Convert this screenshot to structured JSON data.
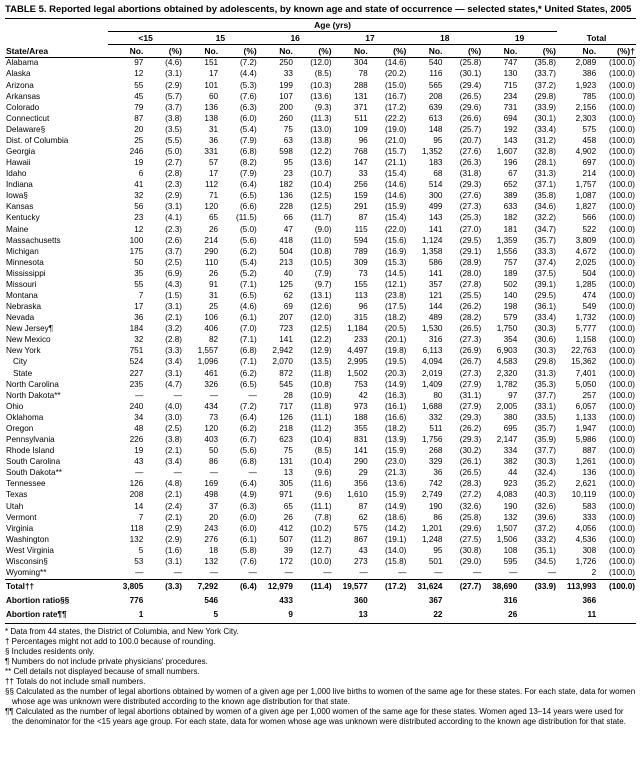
{
  "title": "TABLE 5. Reported legal abortions obtained by adolescents, by known age and state of occurrence — selected states,* United States, 2005",
  "age_header": "Age (yrs)",
  "groups": [
    "<15",
    "15",
    "16",
    "17",
    "18",
    "19",
    "Total"
  ],
  "col_labels": {
    "state": "State/Area",
    "no": "No.",
    "pct": "(%)",
    "pct_total": "(%)†"
  },
  "rows": [
    {
      "s": "Alabama",
      "v": [
        "97",
        "(4.6)",
        "151",
        "(7.2)",
        "250",
        "(12.0)",
        "304",
        "(14.6)",
        "540",
        "(25.8)",
        "747",
        "(35.8)",
        "2,089",
        "(100.0)"
      ]
    },
    {
      "s": "Alaska",
      "v": [
        "12",
        "(3.1)",
        "17",
        "(4.4)",
        "33",
        "(8.5)",
        "78",
        "(20.2)",
        "116",
        "(30.1)",
        "130",
        "(33.7)",
        "386",
        "(100.0)"
      ]
    },
    {
      "s": "Arizona",
      "v": [
        "55",
        "(2.9)",
        "101",
        "(5.3)",
        "199",
        "(10.3)",
        "288",
        "(15.0)",
        "565",
        "(29.4)",
        "715",
        "(37.2)",
        "1,923",
        "(100.0)"
      ]
    },
    {
      "s": "Arkansas",
      "v": [
        "45",
        "(5.7)",
        "60",
        "(7.6)",
        "107",
        "(13.6)",
        "131",
        "(16.7)",
        "208",
        "(26.5)",
        "234",
        "(29.8)",
        "785",
        "(100.0)"
      ]
    },
    {
      "s": "Colorado",
      "v": [
        "79",
        "(3.7)",
        "136",
        "(6.3)",
        "200",
        "(9.3)",
        "371",
        "(17.2)",
        "639",
        "(29.6)",
        "731",
        "(33.9)",
        "2,156",
        "(100.0)"
      ]
    },
    {
      "s": "Connecticut",
      "v": [
        "87",
        "(3.8)",
        "138",
        "(6.0)",
        "260",
        "(11.3)",
        "511",
        "(22.2)",
        "613",
        "(26.6)",
        "694",
        "(30.1)",
        "2,303",
        "(100.0)"
      ]
    },
    {
      "s": "Delaware§",
      "v": [
        "20",
        "(3.5)",
        "31",
        "(5.4)",
        "75",
        "(13.0)",
        "109",
        "(19.0)",
        "148",
        "(25.7)",
        "192",
        "(33.4)",
        "575",
        "(100.0)"
      ]
    },
    {
      "s": "Dist. of Columbia",
      "v": [
        "25",
        "(5.5)",
        "36",
        "(7.9)",
        "63",
        "(13.8)",
        "96",
        "(21.0)",
        "95",
        "(20.7)",
        "143",
        "(31.2)",
        "458",
        "(100.0)"
      ]
    },
    {
      "s": "Georgia",
      "v": [
        "246",
        "(5.0)",
        "331",
        "(6.8)",
        "598",
        "(12.2)",
        "768",
        "(15.7)",
        "1,352",
        "(27.6)",
        "1,607",
        "(32.8)",
        "4,902",
        "(100.0)"
      ]
    },
    {
      "s": "Hawaii",
      "v": [
        "19",
        "(2.7)",
        "57",
        "(8.2)",
        "95",
        "(13.6)",
        "147",
        "(21.1)",
        "183",
        "(26.3)",
        "196",
        "(28.1)",
        "697",
        "(100.0)"
      ]
    },
    {
      "s": "Idaho",
      "v": [
        "6",
        "(2.8)",
        "17",
        "(7.9)",
        "23",
        "(10.7)",
        "33",
        "(15.4)",
        "68",
        "(31.8)",
        "67",
        "(31.3)",
        "214",
        "(100.0)"
      ]
    },
    {
      "s": "Indiana",
      "v": [
        "41",
        "(2.3)",
        "112",
        "(6.4)",
        "182",
        "(10.4)",
        "256",
        "(14.6)",
        "514",
        "(29.3)",
        "652",
        "(37.1)",
        "1,757",
        "(100.0)"
      ]
    },
    {
      "s": "Iowa§",
      "v": [
        "32",
        "(2.9)",
        "71",
        "(6.5)",
        "136",
        "(12.5)",
        "159",
        "(14.6)",
        "300",
        "(27.6)",
        "389",
        "(35.8)",
        "1,087",
        "(100.0)"
      ]
    },
    {
      "s": "Kansas",
      "v": [
        "56",
        "(3.1)",
        "120",
        "(6.6)",
        "228",
        "(12.5)",
        "291",
        "(15.9)",
        "499",
        "(27.3)",
        "633",
        "(34.6)",
        "1,827",
        "(100.0)"
      ]
    },
    {
      "s": "Kentucky",
      "v": [
        "23",
        "(4.1)",
        "65",
        "(11.5)",
        "66",
        "(11.7)",
        "87",
        "(15.4)",
        "143",
        "(25.3)",
        "182",
        "(32.2)",
        "566",
        "(100.0)"
      ]
    },
    {
      "s": "Maine",
      "v": [
        "12",
        "(2.3)",
        "26",
        "(5.0)",
        "47",
        "(9.0)",
        "115",
        "(22.0)",
        "141",
        "(27.0)",
        "181",
        "(34.7)",
        "522",
        "(100.0)"
      ]
    },
    {
      "s": "Massachusetts",
      "v": [
        "100",
        "(2.6)",
        "214",
        "(5.6)",
        "418",
        "(11.0)",
        "594",
        "(15.6)",
        "1,124",
        "(29.5)",
        "1,359",
        "(35.7)",
        "3,809",
        "(100.0)"
      ]
    },
    {
      "s": "Michigan",
      "v": [
        "175",
        "(3.7)",
        "290",
        "(6.2)",
        "504",
        "(10.8)",
        "789",
        "(16.9)",
        "1,358",
        "(29.1)",
        "1,556",
        "(33.3)",
        "4,672",
        "(100.0)"
      ]
    },
    {
      "s": "Minnesota",
      "v": [
        "50",
        "(2.5)",
        "110",
        "(5.4)",
        "213",
        "(10.5)",
        "309",
        "(15.3)",
        "586",
        "(28.9)",
        "757",
        "(37.4)",
        "2,025",
        "(100.0)"
      ]
    },
    {
      "s": "Mississippi",
      "v": [
        "35",
        "(6.9)",
        "26",
        "(5.2)",
        "40",
        "(7.9)",
        "73",
        "(14.5)",
        "141",
        "(28.0)",
        "189",
        "(37.5)",
        "504",
        "(100.0)"
      ]
    },
    {
      "s": "Missouri",
      "v": [
        "55",
        "(4.3)",
        "91",
        "(7.1)",
        "125",
        "(9.7)",
        "155",
        "(12.1)",
        "357",
        "(27.8)",
        "502",
        "(39.1)",
        "1,285",
        "(100.0)"
      ]
    },
    {
      "s": "Montana",
      "v": [
        "7",
        "(1.5)",
        "31",
        "(6.5)",
        "62",
        "(13.1)",
        "113",
        "(23.8)",
        "121",
        "(25.5)",
        "140",
        "(29.5)",
        "474",
        "(100.0)"
      ]
    },
    {
      "s": "Nebraska",
      "v": [
        "17",
        "(3.1)",
        "25",
        "(4.6)",
        "69",
        "(12.6)",
        "96",
        "(17.5)",
        "144",
        "(26.2)",
        "198",
        "(36.1)",
        "549",
        "(100.0)"
      ]
    },
    {
      "s": "Nevada",
      "v": [
        "36",
        "(2.1)",
        "106",
        "(6.1)",
        "207",
        "(12.0)",
        "315",
        "(18.2)",
        "489",
        "(28.2)",
        "579",
        "(33.4)",
        "1,732",
        "(100.0)"
      ]
    },
    {
      "s": "New Jersey¶",
      "v": [
        "184",
        "(3.2)",
        "406",
        "(7.0)",
        "723",
        "(12.5)",
        "1,184",
        "(20.5)",
        "1,530",
        "(26.5)",
        "1,750",
        "(30.3)",
        "5,777",
        "(100.0)"
      ]
    },
    {
      "s": "New Mexico",
      "v": [
        "32",
        "(2.8)",
        "82",
        "(7.1)",
        "141",
        "(12.2)",
        "233",
        "(20.1)",
        "316",
        "(27.3)",
        "354",
        "(30.6)",
        "1,158",
        "(100.0)"
      ]
    },
    {
      "s": "New York",
      "v": [
        "751",
        "(3.3)",
        "1,557",
        "(6.8)",
        "2,942",
        "(12.9)",
        "4,497",
        "(19.8)",
        "6,113",
        "(26.9)",
        "6,903",
        "(30.3)",
        "22,763",
        "(100.0)"
      ]
    },
    {
      "s": "City",
      "indent": true,
      "v": [
        "524",
        "(3.4)",
        "1,096",
        "(7.1)",
        "2,070",
        "(13.5)",
        "2,995",
        "(19.5)",
        "4,094",
        "(26.7)",
        "4,583",
        "(29.8)",
        "15,362",
        "(100.0)"
      ]
    },
    {
      "s": "State",
      "indent": true,
      "v": [
        "227",
        "(3.1)",
        "461",
        "(6.2)",
        "872",
        "(11.8)",
        "1,502",
        "(20.3)",
        "2,019",
        "(27.3)",
        "2,320",
        "(31.3)",
        "7,401",
        "(100.0)"
      ]
    },
    {
      "s": "North Carolina",
      "v": [
        "235",
        "(4.7)",
        "326",
        "(6.5)",
        "545",
        "(10.8)",
        "753",
        "(14.9)",
        "1,409",
        "(27.9)",
        "1,782",
        "(35.3)",
        "5,050",
        "(100.0)"
      ]
    },
    {
      "s": "North Dakota**",
      "v": [
        "—",
        "—",
        "—",
        "—",
        "28",
        "(10.9)",
        "42",
        "(16.3)",
        "80",
        "(31.1)",
        "97",
        "(37.7)",
        "257",
        "(100.0)"
      ]
    },
    {
      "s": "Ohio",
      "v": [
        "240",
        "(4.0)",
        "434",
        "(7.2)",
        "717",
        "(11.8)",
        "973",
        "(16.1)",
        "1,688",
        "(27.9)",
        "2,005",
        "(33.1)",
        "6,057",
        "(100.0)"
      ]
    },
    {
      "s": "Oklahoma",
      "v": [
        "34",
        "(3.0)",
        "73",
        "(6.4)",
        "126",
        "(11.1)",
        "188",
        "(16.6)",
        "332",
        "(29.3)",
        "380",
        "(33.5)",
        "1,133",
        "(100.0)"
      ]
    },
    {
      "s": "Oregon",
      "v": [
        "48",
        "(2.5)",
        "120",
        "(6.2)",
        "218",
        "(11.2)",
        "355",
        "(18.2)",
        "511",
        "(26.2)",
        "695",
        "(35.7)",
        "1,947",
        "(100.0)"
      ]
    },
    {
      "s": "Pennsylvania",
      "v": [
        "226",
        "(3.8)",
        "403",
        "(6.7)",
        "623",
        "(10.4)",
        "831",
        "(13.9)",
        "1,756",
        "(29.3)",
        "2,147",
        "(35.9)",
        "5,986",
        "(100.0)"
      ]
    },
    {
      "s": "Rhode Island",
      "v": [
        "19",
        "(2.1)",
        "50",
        "(5.6)",
        "75",
        "(8.5)",
        "141",
        "(15.9)",
        "268",
        "(30.2)",
        "334",
        "(37.7)",
        "887",
        "(100.0)"
      ]
    },
    {
      "s": "South Carolina",
      "v": [
        "43",
        "(3.4)",
        "86",
        "(6.8)",
        "131",
        "(10.4)",
        "290",
        "(23.0)",
        "329",
        "(26.1)",
        "382",
        "(30.3)",
        "1,261",
        "(100.0)"
      ]
    },
    {
      "s": "South Dakota**",
      "v": [
        "—",
        "—",
        "—",
        "—",
        "13",
        "(9.6)",
        "29",
        "(21.3)",
        "36",
        "(26.5)",
        "44",
        "(32.4)",
        "136",
        "(100.0)"
      ]
    },
    {
      "s": "Tennessee",
      "v": [
        "126",
        "(4.8)",
        "169",
        "(6.4)",
        "305",
        "(11.6)",
        "356",
        "(13.6)",
        "742",
        "(28.3)",
        "923",
        "(35.2)",
        "2,621",
        "(100.0)"
      ]
    },
    {
      "s": "Texas",
      "v": [
        "208",
        "(2.1)",
        "498",
        "(4.9)",
        "971",
        "(9.6)",
        "1,610",
        "(15.9)",
        "2,749",
        "(27.2)",
        "4,083",
        "(40.3)",
        "10,119",
        "(100.0)"
      ]
    },
    {
      "s": "Utah",
      "v": [
        "14",
        "(2.4)",
        "37",
        "(6.3)",
        "65",
        "(11.1)",
        "87",
        "(14.9)",
        "190",
        "(32.6)",
        "190",
        "(32.6)",
        "583",
        "(100.0)"
      ]
    },
    {
      "s": "Vermont",
      "v": [
        "7",
        "(2.1)",
        "20",
        "(6.0)",
        "26",
        "(7.8)",
        "62",
        "(18.6)",
        "86",
        "(25.8)",
        "132",
        "(39.6)",
        "333",
        "(100.0)"
      ]
    },
    {
      "s": "Virginia",
      "v": [
        "118",
        "(2.9)",
        "243",
        "(6.0)",
        "412",
        "(10.2)",
        "575",
        "(14.2)",
        "1,201",
        "(29.6)",
        "1,507",
        "(37.2)",
        "4,056",
        "(100.0)"
      ]
    },
    {
      "s": "Washington",
      "v": [
        "132",
        "(2.9)",
        "276",
        "(6.1)",
        "507",
        "(11.2)",
        "867",
        "(19.1)",
        "1,248",
        "(27.5)",
        "1,506",
        "(33.2)",
        "4,536",
        "(100.0)"
      ]
    },
    {
      "s": "West Virginia",
      "v": [
        "5",
        "(1.6)",
        "18",
        "(5.8)",
        "39",
        "(12.7)",
        "43",
        "(14.0)",
        "95",
        "(30.8)",
        "108",
        "(35.1)",
        "308",
        "(100.0)"
      ]
    },
    {
      "s": "Wisconsin§",
      "v": [
        "53",
        "(3.1)",
        "132",
        "(7.6)",
        "172",
        "(10.0)",
        "273",
        "(15.8)",
        "501",
        "(29.0)",
        "595",
        "(34.5)",
        "1,726",
        "(100.0)"
      ]
    },
    {
      "s": "Wyoming**",
      "v": [
        "—",
        "—",
        "—",
        "—",
        "—",
        "—",
        "—",
        "—",
        "—",
        "—",
        "—",
        "—",
        "2",
        "(100.0)"
      ]
    }
  ],
  "total_row": {
    "s": "Total††",
    "v": [
      "3,805",
      "(3.3)",
      "7,292",
      "(6.4)",
      "12,979",
      "(11.4)",
      "19,577",
      "(17.2)",
      "31,624",
      "(27.7)",
      "38,690",
      "(33.9)",
      "113,993",
      "(100.0)"
    ]
  },
  "ratio_row": {
    "s": "Abortion ratio§§",
    "v": [
      "776",
      "",
      "546",
      "",
      "433",
      "",
      "360",
      "",
      "367",
      "",
      "316",
      "",
      "366",
      ""
    ]
  },
  "rate_row": {
    "s": "Abortion rate¶¶",
    "v": [
      "1",
      "",
      "5",
      "",
      "9",
      "",
      "13",
      "",
      "22",
      "",
      "26",
      "",
      "11",
      ""
    ]
  },
  "footnotes": [
    "* Data from 44 states, the District of Columbia, and New York City.",
    "† Percentages might not add to 100.0 because of rounding.",
    "§ Includes residents only.",
    "¶ Numbers do not include private physicians' procedures.",
    "** Cell details not displayed because of small numbers.",
    "†† Totals do not include small numbers.",
    "§§ Calculated as the number of legal abortions obtained by women of a given age per 1,000 live births to women of the same age for these states. For each state, data for women whose age was unknown were distributed according to the known age distribution for that state.",
    "¶¶ Calculated as the number of legal abortions obtained by women of a given age per 1,000 women of the same age for these states. Women aged 13–14 years were used for the denominator for the <15 years age group. For each state, data for women whose age was unknown were distributed according to the known age distribution for that state."
  ]
}
